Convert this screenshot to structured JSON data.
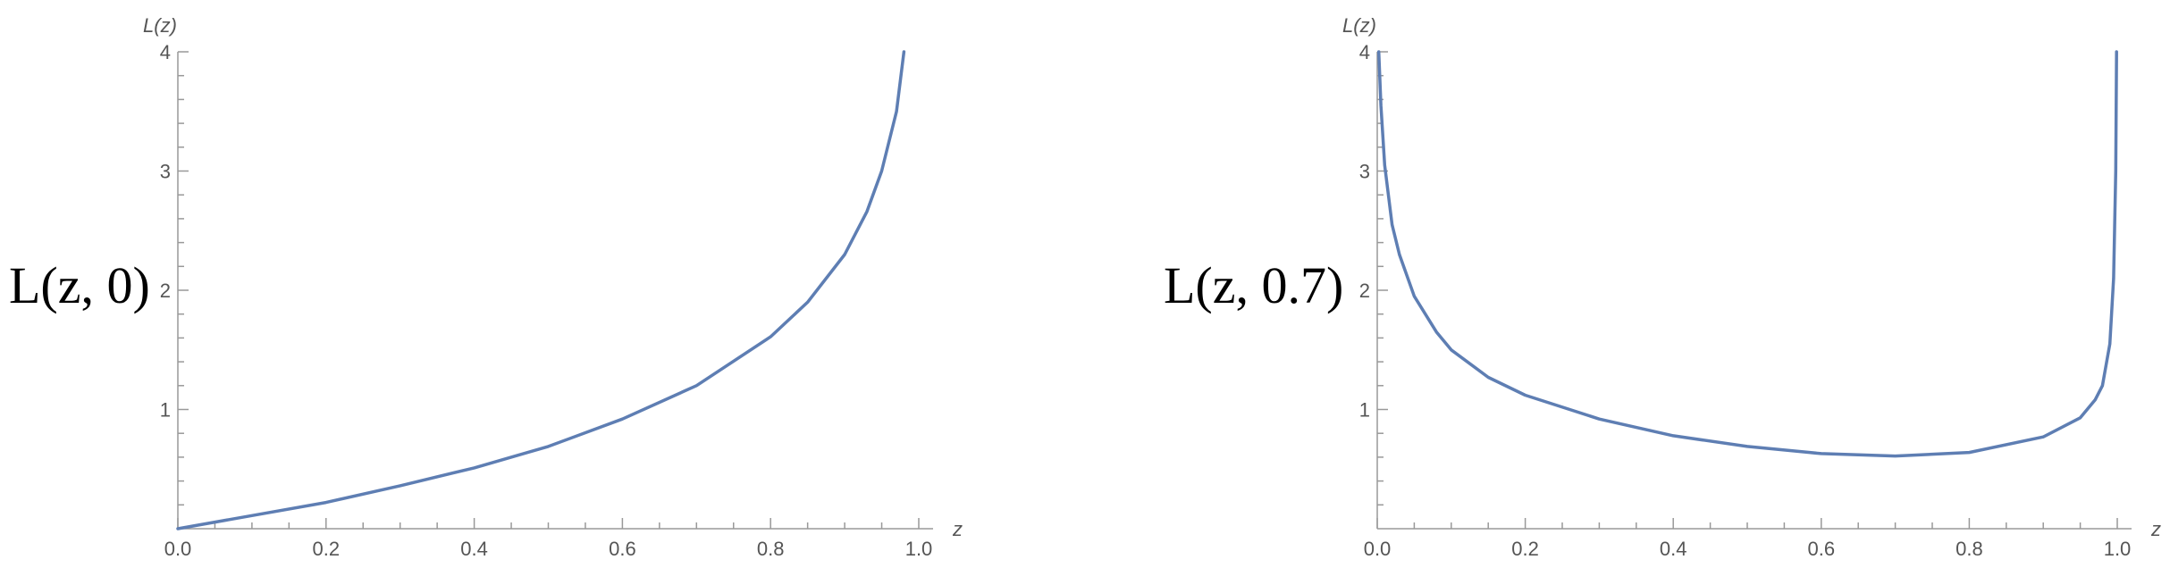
{
  "chart_data": [
    {
      "type": "line",
      "side_label": "L(z, 0)",
      "xlabel": "z",
      "ylabel": "L(z)",
      "xlim": [
        0,
        1.0
      ],
      "ylim": [
        0,
        4
      ],
      "xticks": [
        "0.0",
        "0.2",
        "0.4",
        "0.6",
        "0.8",
        "1.0"
      ],
      "yticks": [
        "1",
        "2",
        "3",
        "4"
      ],
      "line_color": "#5e7eb3",
      "series": [
        {
          "x": [
            0.0,
            0.1,
            0.2,
            0.3,
            0.4,
            0.5,
            0.6,
            0.7,
            0.8,
            0.85,
            0.9,
            0.93,
            0.95,
            0.97,
            0.98
          ],
          "y": [
            0.0,
            0.11,
            0.22,
            0.36,
            0.51,
            0.69,
            0.92,
            1.2,
            1.61,
            1.9,
            2.3,
            2.66,
            3.0,
            3.5,
            4.0
          ]
        }
      ]
    },
    {
      "type": "line",
      "side_label": "L(z, 0.7)",
      "xlabel": "z",
      "ylabel": "L(z)",
      "xlim": [
        0,
        1.0
      ],
      "ylim": [
        0,
        4
      ],
      "xticks": [
        "0.0",
        "0.2",
        "0.4",
        "0.6",
        "0.8",
        "1.0"
      ],
      "yticks": [
        "1",
        "2",
        "3",
        "4"
      ],
      "line_color": "#5e7eb3",
      "series": [
        {
          "x": [
            0.002,
            0.005,
            0.01,
            0.02,
            0.03,
            0.05,
            0.08,
            0.1,
            0.15,
            0.2,
            0.3,
            0.4,
            0.5,
            0.6,
            0.7,
            0.8,
            0.9,
            0.95,
            0.97,
            0.98,
            0.99,
            0.995,
            0.998,
            0.999
          ],
          "y": [
            4.0,
            3.55,
            3.05,
            2.55,
            2.3,
            1.95,
            1.65,
            1.5,
            1.27,
            1.12,
            0.92,
            0.78,
            0.69,
            0.63,
            0.61,
            0.64,
            0.77,
            0.93,
            1.08,
            1.2,
            1.55,
            2.1,
            3.0,
            4.0
          ]
        }
      ]
    }
  ]
}
